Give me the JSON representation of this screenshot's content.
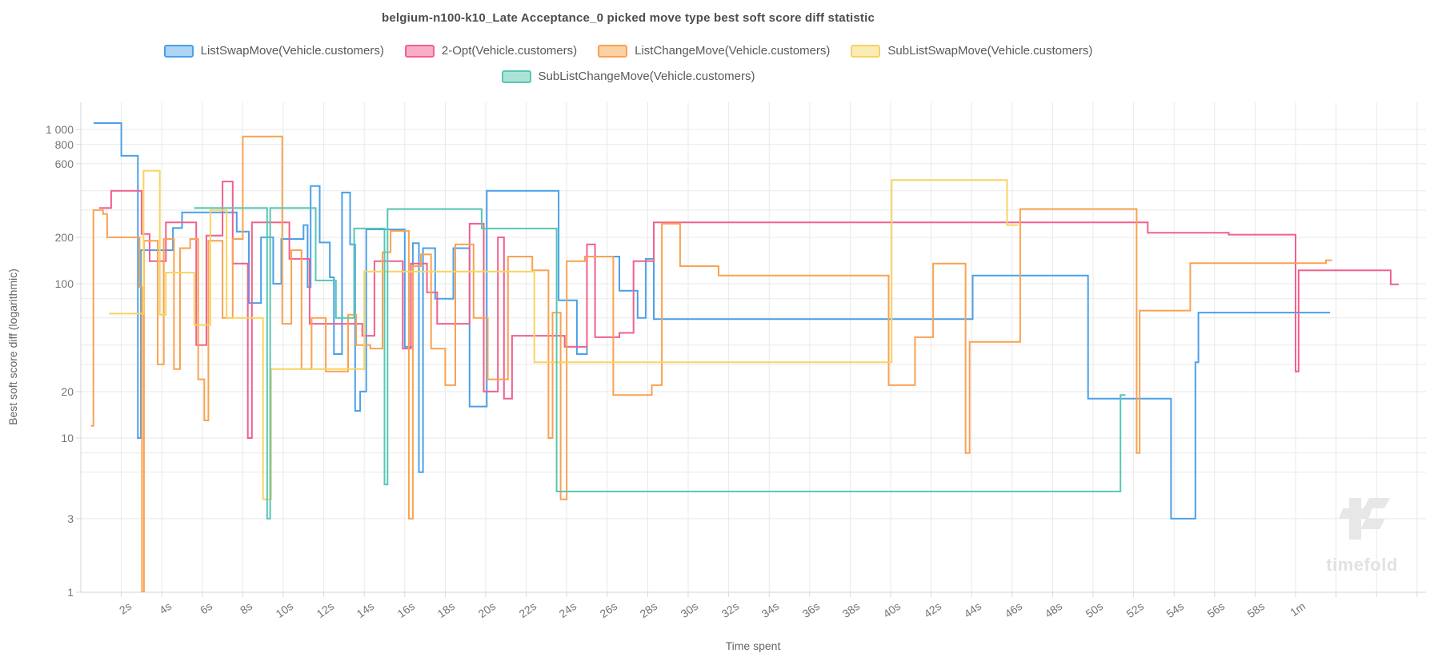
{
  "watermark": {
    "text": "timefold"
  },
  "chart_data": {
    "type": "line",
    "step": true,
    "log_y": true,
    "title": "belgium-n100-k10_Late Acceptance_0 picked move type best soft score diff statistic",
    "xlabel": "Time spent",
    "ylabel": "Best soft score diff (logarithmic)",
    "xlim": [
      0,
      66.5
    ],
    "ylim": [
      1,
      1500
    ],
    "x_unit": "seconds",
    "x_ticks": [
      {
        "t": 2,
        "label": "2s"
      },
      {
        "t": 4,
        "label": "4s"
      },
      {
        "t": 6,
        "label": "6s"
      },
      {
        "t": 8,
        "label": "8s"
      },
      {
        "t": 10,
        "label": "10s"
      },
      {
        "t": 12,
        "label": "12s"
      },
      {
        "t": 14,
        "label": "14s"
      },
      {
        "t": 16,
        "label": "16s"
      },
      {
        "t": 18,
        "label": "18s"
      },
      {
        "t": 20,
        "label": "20s"
      },
      {
        "t": 22,
        "label": "22s"
      },
      {
        "t": 24,
        "label": "24s"
      },
      {
        "t": 26,
        "label": "26s"
      },
      {
        "t": 28,
        "label": "28s"
      },
      {
        "t": 30,
        "label": "30s"
      },
      {
        "t": 32,
        "label": "32s"
      },
      {
        "t": 34,
        "label": "34s"
      },
      {
        "t": 36,
        "label": "36s"
      },
      {
        "t": 38,
        "label": "38s"
      },
      {
        "t": 40,
        "label": "40s"
      },
      {
        "t": 42,
        "label": "42s"
      },
      {
        "t": 44,
        "label": "44s"
      },
      {
        "t": 46,
        "label": "46s"
      },
      {
        "t": 48,
        "label": "48s"
      },
      {
        "t": 50,
        "label": "50s"
      },
      {
        "t": 52,
        "label": "52s"
      },
      {
        "t": 54,
        "label": "54s"
      },
      {
        "t": 56,
        "label": "56s"
      },
      {
        "t": 58,
        "label": "58s"
      },
      {
        "t": 60,
        "label": "1m"
      },
      {
        "t": 62,
        "label": ""
      },
      {
        "t": 64,
        "label": ""
      },
      {
        "t": 66,
        "label": ""
      }
    ],
    "y_ticks": [
      {
        "v": 1000,
        "label": "1 000"
      },
      {
        "v": 800,
        "label": "800"
      },
      {
        "v": 600,
        "label": "600"
      },
      {
        "v": 400,
        "label": ""
      },
      {
        "v": 300,
        "label": ""
      },
      {
        "v": 200,
        "label": "200"
      },
      {
        "v": 100,
        "label": "100"
      },
      {
        "v": 80,
        "label": ""
      },
      {
        "v": 60,
        "label": ""
      },
      {
        "v": 40,
        "label": ""
      },
      {
        "v": 30,
        "label": ""
      },
      {
        "v": 20,
        "label": "20"
      },
      {
        "v": 10,
        "label": "10"
      },
      {
        "v": 8,
        "label": ""
      },
      {
        "v": 6,
        "label": ""
      },
      {
        "v": 3,
        "label": "3"
      },
      {
        "v": 1,
        "label": "1"
      }
    ],
    "series": [
      {
        "name": "ListSwapMove(Vehicle.customers)",
        "color": "#4BA0E8",
        "fill": "#ABD4F5",
        "points": [
          [
            0.63,
            1100
          ],
          [
            2.0,
            675
          ],
          [
            2.82,
            10
          ],
          [
            2.97,
            165
          ],
          [
            4.55,
            230
          ],
          [
            5.0,
            290
          ],
          [
            7.7,
            218
          ],
          [
            8.3,
            75
          ],
          [
            8.9,
            200
          ],
          [
            9.5,
            100
          ],
          [
            9.9,
            195
          ],
          [
            11.0,
            240
          ],
          [
            11.2,
            95
          ],
          [
            11.35,
            430
          ],
          [
            11.8,
            185
          ],
          [
            12.3,
            110
          ],
          [
            12.5,
            35
          ],
          [
            12.9,
            390
          ],
          [
            13.3,
            180
          ],
          [
            13.55,
            15
          ],
          [
            13.8,
            20
          ],
          [
            14.1,
            225
          ],
          [
            16.0,
            39
          ],
          [
            16.4,
            183
          ],
          [
            16.7,
            6
          ],
          [
            16.9,
            170
          ],
          [
            17.5,
            80
          ],
          [
            18.4,
            170
          ],
          [
            19.2,
            16
          ],
          [
            20.05,
            400
          ],
          [
            23.6,
            78
          ],
          [
            24.5,
            35
          ],
          [
            25.0,
            150
          ],
          [
            26.6,
            90
          ],
          [
            27.5,
            60
          ],
          [
            27.9,
            145
          ],
          [
            28.3,
            59
          ],
          [
            44.05,
            113
          ],
          [
            49.75,
            18
          ],
          [
            53.85,
            3
          ],
          [
            55.05,
            31
          ],
          [
            55.2,
            65
          ],
          [
            61.7,
            65
          ]
        ]
      },
      {
        "name": "2-Opt(Vehicle.customers)",
        "color": "#F1608D",
        "fill": "#F8AEC6",
        "points": [
          [
            0.9,
            310
          ],
          [
            1.5,
            400
          ],
          [
            3.0,
            210
          ],
          [
            3.4,
            140
          ],
          [
            4.2,
            250
          ],
          [
            5.7,
            40
          ],
          [
            6.2,
            205
          ],
          [
            7.0,
            460
          ],
          [
            7.5,
            135
          ],
          [
            8.25,
            10
          ],
          [
            8.45,
            250
          ],
          [
            10.3,
            145
          ],
          [
            11.3,
            55
          ],
          [
            13.9,
            46
          ],
          [
            14.5,
            140
          ],
          [
            15.9,
            38
          ],
          [
            16.3,
            135
          ],
          [
            17.1,
            88
          ],
          [
            17.6,
            55
          ],
          [
            19.2,
            245
          ],
          [
            19.9,
            20
          ],
          [
            20.6,
            200
          ],
          [
            20.9,
            18
          ],
          [
            21.3,
            46
          ],
          [
            23.9,
            39
          ],
          [
            25.0,
            180
          ],
          [
            25.4,
            45
          ],
          [
            26.6,
            48
          ],
          [
            27.3,
            140
          ],
          [
            28.3,
            250
          ],
          [
            52.7,
            214
          ],
          [
            56.7,
            208
          ],
          [
            60.0,
            27
          ],
          [
            60.15,
            122
          ],
          [
            64.7,
            99
          ],
          [
            65.1,
            99
          ]
        ]
      },
      {
        "name": "ListChangeMove(Vehicle.customers)",
        "color": "#F9A252",
        "fill": "#FBD2A4",
        "points": [
          [
            0.5,
            12
          ],
          [
            0.62,
            300
          ],
          [
            1.1,
            283
          ],
          [
            1.3,
            200
          ],
          [
            2.9,
            95
          ],
          [
            3.02,
            1
          ],
          [
            3.12,
            190
          ],
          [
            3.8,
            30
          ],
          [
            4.1,
            195
          ],
          [
            4.6,
            28
          ],
          [
            4.9,
            170
          ],
          [
            5.4,
            195
          ],
          [
            5.8,
            24
          ],
          [
            6.1,
            13
          ],
          [
            6.3,
            190
          ],
          [
            7.0,
            60
          ],
          [
            7.5,
            195
          ],
          [
            8.0,
            900
          ],
          [
            9.95,
            55
          ],
          [
            10.4,
            165
          ],
          [
            10.9,
            28
          ],
          [
            11.4,
            60
          ],
          [
            12.1,
            27
          ],
          [
            13.2,
            63
          ],
          [
            13.6,
            40
          ],
          [
            14.3,
            38
          ],
          [
            14.9,
            160
          ],
          [
            15.3,
            220
          ],
          [
            16.2,
            3
          ],
          [
            16.4,
            130
          ],
          [
            16.8,
            155
          ],
          [
            17.3,
            38
          ],
          [
            18.0,
            22
          ],
          [
            18.5,
            180
          ],
          [
            19.4,
            60
          ],
          [
            20.1,
            24
          ],
          [
            21.1,
            150
          ],
          [
            22.3,
            122
          ],
          [
            23.1,
            10
          ],
          [
            23.3,
            65
          ],
          [
            23.7,
            4
          ],
          [
            24.0,
            140
          ],
          [
            24.9,
            150
          ],
          [
            26.3,
            19
          ],
          [
            28.2,
            22
          ],
          [
            28.7,
            245
          ],
          [
            29.6,
            130
          ],
          [
            31.5,
            113
          ],
          [
            39.9,
            22
          ],
          [
            41.2,
            45
          ],
          [
            42.1,
            135
          ],
          [
            43.7,
            8
          ],
          [
            43.9,
            42
          ],
          [
            46.4,
            305
          ],
          [
            52.15,
            8
          ],
          [
            52.3,
            67
          ],
          [
            54.8,
            136
          ],
          [
            61.5,
            142
          ],
          [
            61.8,
            142
          ]
        ]
      },
      {
        "name": "SubListSwapMove(Vehicle.customers)",
        "color": "#F7D461",
        "fill": "#FBEBB5",
        "points": [
          [
            1.4,
            64
          ],
          [
            3.1,
            540
          ],
          [
            3.9,
            63
          ],
          [
            4.2,
            118
          ],
          [
            5.6,
            54
          ],
          [
            6.4,
            300
          ],
          [
            7.2,
            60
          ],
          [
            9.0,
            4
          ],
          [
            9.4,
            28
          ],
          [
            14.0,
            120
          ],
          [
            22.4,
            31
          ],
          [
            40.05,
            470
          ],
          [
            45.75,
            240
          ],
          [
            46.3,
            240
          ]
        ]
      },
      {
        "name": "SubListChangeMove(Vehicle.customers)",
        "color": "#57C7B4",
        "fill": "#ACE3D9",
        "points": [
          [
            5.6,
            310
          ],
          [
            9.2,
            3
          ],
          [
            9.35,
            310
          ],
          [
            11.6,
            105
          ],
          [
            12.6,
            60
          ],
          [
            13.5,
            228
          ],
          [
            15.0,
            5
          ],
          [
            15.15,
            305
          ],
          [
            19.8,
            228
          ],
          [
            23.5,
            4.5
          ],
          [
            51.35,
            19
          ],
          [
            51.6,
            19
          ]
        ]
      }
    ],
    "legend_position": "top",
    "grid": true
  }
}
